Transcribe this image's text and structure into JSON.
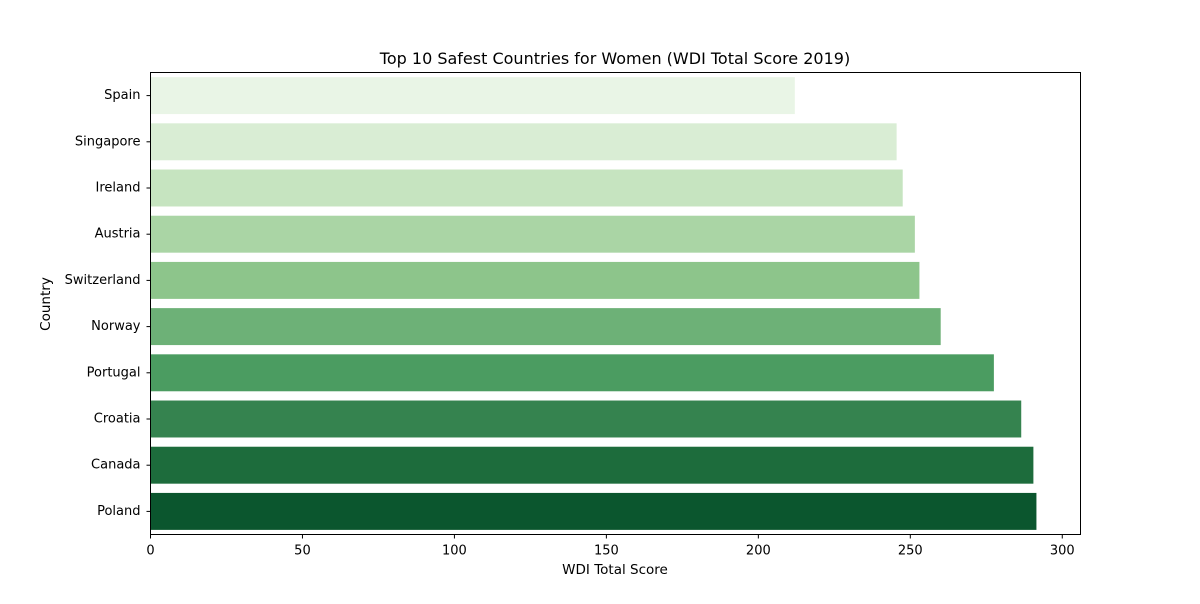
{
  "chart_data": {
    "type": "bar",
    "orientation": "horizontal",
    "title": "Top 10 Safest Countries for Women (WDI Total Score 2019)",
    "xlabel": "WDI Total Score",
    "ylabel": "Country",
    "xlim": [
      0,
      306
    ],
    "xticks": [
      0,
      50,
      100,
      150,
      200,
      250,
      300
    ],
    "grid": false,
    "categories": [
      "Spain",
      "Singapore",
      "Ireland",
      "Austria",
      "Switzerland",
      "Norway",
      "Portugal",
      "Croatia",
      "Canada",
      "Poland"
    ],
    "values": [
      212,
      245.5,
      247.5,
      251.5,
      253,
      260,
      277.5,
      286.5,
      290.5,
      291.5
    ],
    "colors": [
      "#e9f5e6",
      "#d9edd4",
      "#c6e4c0",
      "#aad5a5",
      "#8dc58b",
      "#6db177",
      "#4b9c61",
      "#35834f",
      "#1d6c3c",
      "#0b562e"
    ]
  }
}
